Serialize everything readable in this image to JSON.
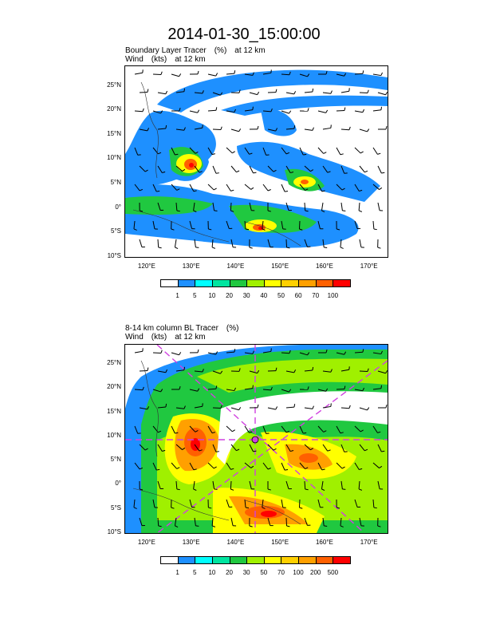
{
  "main_title": "2014-01-30_15:00:00",
  "panels": [
    {
      "title_field": "Boundary Layer Tracer",
      "title_units": "(%)",
      "title_level": "at   12 km",
      "wind_field": "Wind",
      "wind_units": "(kts)",
      "wind_level": "at   12 km",
      "lat_labels": [
        "25°N",
        "20°N",
        "15°N",
        "10°N",
        "5°N",
        "0°",
        "5°S",
        "10°S"
      ],
      "lon_labels": [
        "120°E",
        "130°E",
        "140°E",
        "150°E",
        "160°E",
        "170°E"
      ],
      "colorbar_ticks": [
        "1",
        "5",
        "10",
        "20",
        "30",
        "40",
        "50",
        "60",
        "70",
        "100"
      ],
      "colorbar_colors": [
        "#ffffff",
        "#1e90ff",
        "#00ffff",
        "#00e5a0",
        "#20c840",
        "#a0f000",
        "#ffff00",
        "#ffd000",
        "#ffa000",
        "#ff6000",
        "#ff0000"
      ]
    },
    {
      "title_field": "8-14 km column BL Tracer",
      "title_units": "(%)",
      "title_level": "",
      "wind_field": "Wind",
      "wind_units": "(kts)",
      "wind_level": "at   12 km",
      "lat_labels": [
        "25°N",
        "20°N",
        "15°N",
        "10°N",
        "5°N",
        "0°",
        "5°S",
        "10°S"
      ],
      "lon_labels": [
        "120°E",
        "130°E",
        "140°E",
        "150°E",
        "160°E",
        "170°E"
      ],
      "colorbar_ticks": [
        "1",
        "5",
        "10",
        "20",
        "30",
        "50",
        "70",
        "100",
        "200",
        "500"
      ],
      "colorbar_colors": [
        "#ffffff",
        "#1e90ff",
        "#00ffff",
        "#00e5a0",
        "#20c840",
        "#a0f000",
        "#ffff00",
        "#ffd000",
        "#ffa000",
        "#ff6000",
        "#ff0000"
      ]
    }
  ],
  "map_extent": {
    "lon": [
      115,
      174
    ],
    "lat": [
      -10,
      29
    ]
  },
  "overlay_color": "#d040e0"
}
